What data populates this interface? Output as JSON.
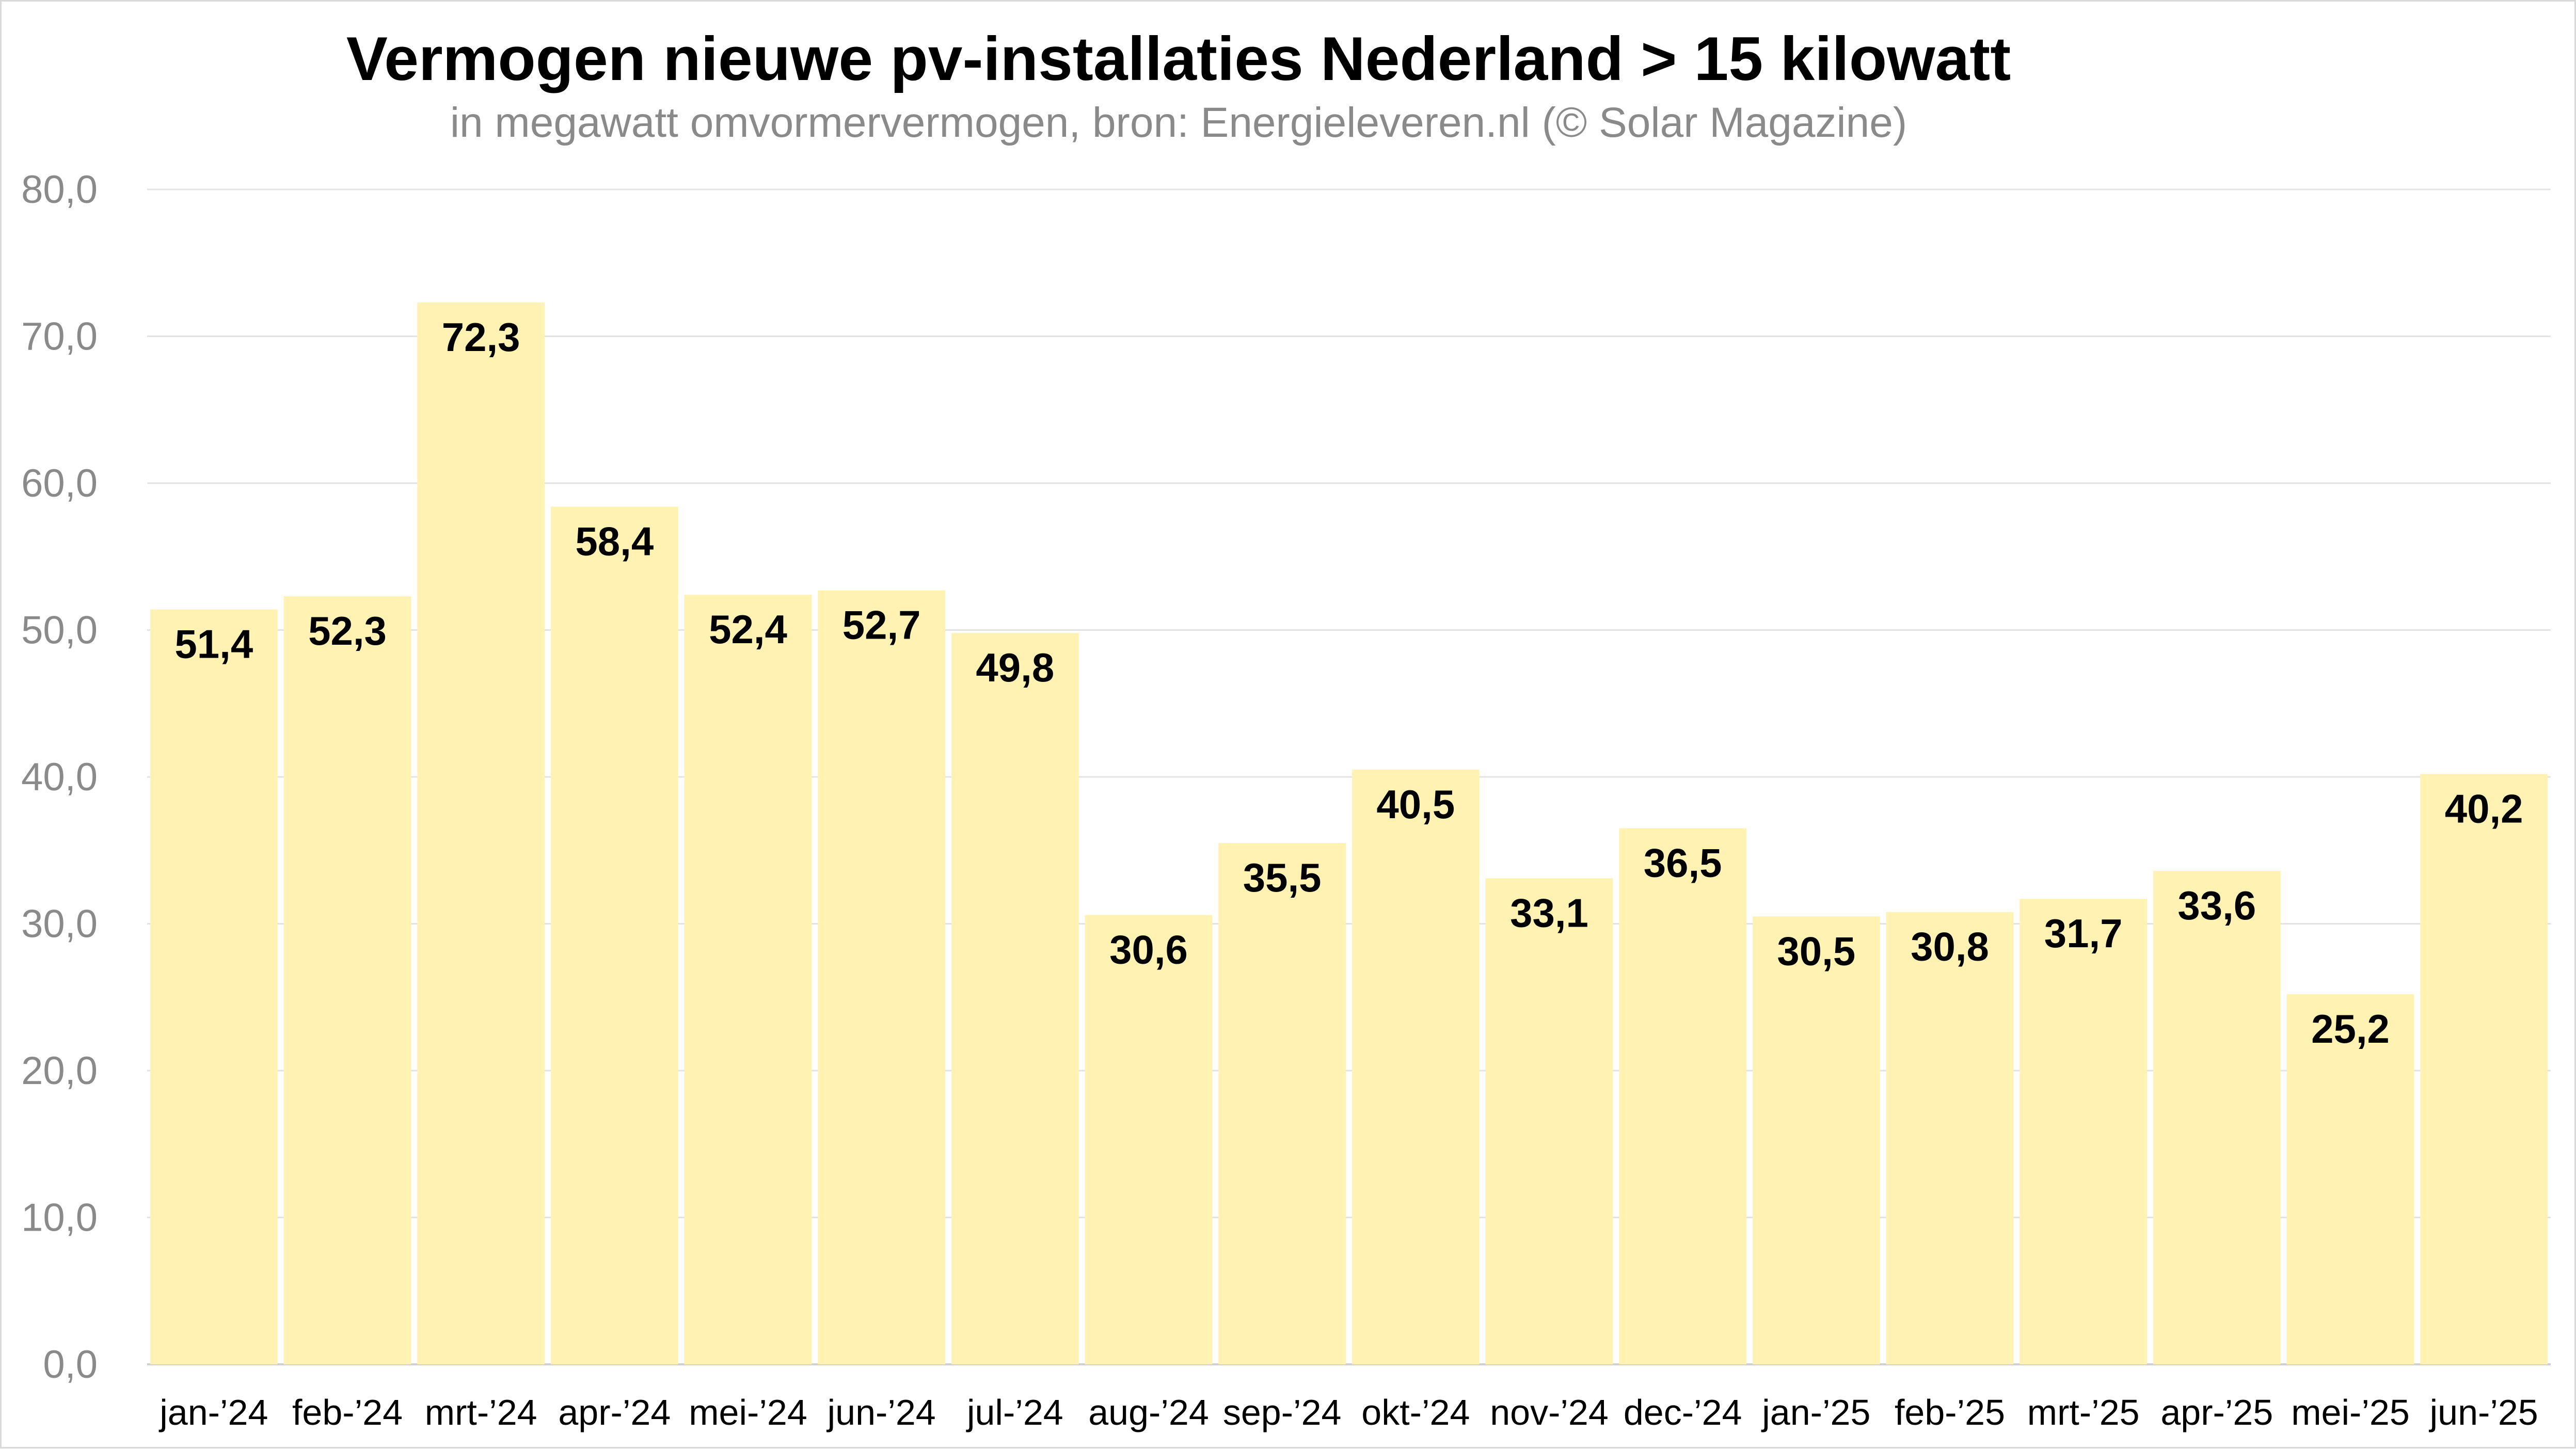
{
  "chart_data": {
    "type": "bar",
    "title": "Vermogen nieuwe pv-installaties Nederland > 15 kilowatt",
    "subtitle": "in megawatt omvormervermogen, bron: Energieleveren.nl (© Solar Magazine)",
    "xlabel": "",
    "ylabel": "",
    "ylim": [
      0,
      80
    ],
    "yticks": [
      "0,0",
      "10,0",
      "20,0",
      "30,0",
      "40,0",
      "50,0",
      "60,0",
      "70,0",
      "80,0"
    ],
    "grid": true,
    "legend": "none",
    "bar_color": "#fff2b3",
    "categories": [
      "jan-’24",
      "feb-’24",
      "mrt-’24",
      "apr-’24",
      "mei-’24",
      "jun-’24",
      "jul-’24",
      "aug-’24",
      "sep-’24",
      "okt-’24",
      "nov-’24",
      "dec-’24",
      "jan-’25",
      "feb-’25",
      "mrt-’25",
      "apr-’25",
      "mei-’25",
      "jun-’25"
    ],
    "values": [
      51.4,
      52.3,
      72.3,
      58.4,
      52.4,
      52.7,
      49.8,
      30.6,
      35.5,
      40.5,
      33.1,
      36.5,
      30.5,
      30.8,
      31.7,
      33.6,
      25.2,
      40.2
    ],
    "value_labels": [
      "51,4",
      "52,3",
      "72,3",
      "58,4",
      "52,4",
      "52,7",
      "49,8",
      "30,6",
      "35,5",
      "40,5",
      "33,1",
      "36,5",
      "30,5",
      "30,8",
      "31,7",
      "33,6",
      "25,2",
      "40,2"
    ]
  }
}
